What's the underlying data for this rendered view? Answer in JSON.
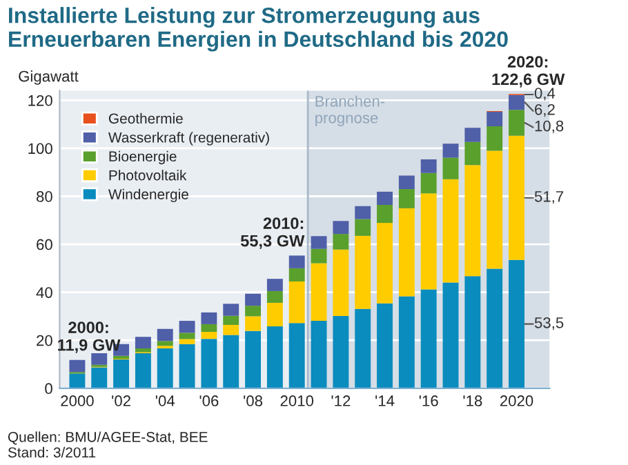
{
  "chart_data": {
    "type": "bar",
    "stacked": true,
    "title": "Installierte Leistung zur Stromerzeugung aus\nErneuerbaren Energien in Deutschland bis 2020",
    "ylabel": "Gigawatt",
    "x": [
      2000,
      2001,
      2002,
      2003,
      2004,
      2005,
      2006,
      2007,
      2008,
      2009,
      2010,
      2011,
      2012,
      2013,
      2014,
      2015,
      2016,
      2017,
      2018,
      2019,
      2020
    ],
    "xlim": [
      1999.2,
      2021.5
    ],
    "xticks": [
      {
        "value": 2000,
        "label": "2000"
      },
      {
        "value": 2002,
        "label": "'02"
      },
      {
        "value": 2004,
        "label": "'04"
      },
      {
        "value": 2006,
        "label": "'06"
      },
      {
        "value": 2008,
        "label": "'08"
      },
      {
        "value": 2010,
        "label": "2010"
      },
      {
        "value": 2012,
        "label": "'12"
      },
      {
        "value": 2014,
        "label": "'14"
      },
      {
        "value": 2016,
        "label": "'16"
      },
      {
        "value": 2018,
        "label": "'18"
      },
      {
        "value": 2020,
        "label": "2020"
      }
    ],
    "ylim": [
      0,
      124
    ],
    "yticks": [
      0,
      20,
      40,
      60,
      80,
      100,
      120
    ],
    "grid": "y",
    "legend": "top left",
    "series": [
      {
        "name": "Windenergie",
        "color": "#0a8cbe",
        "values": [
          6.1,
          8.7,
          12.0,
          14.6,
          16.6,
          18.4,
          20.6,
          22.2,
          23.9,
          25.8,
          27.2,
          28.1,
          30.1,
          33.1,
          35.4,
          38.3,
          41.2,
          44.1,
          46.7,
          49.8,
          53.5
        ],
        "value_labels": [
          null,
          null,
          null,
          null,
          null,
          null,
          null,
          null,
          null,
          null,
          null,
          null,
          null,
          null,
          null,
          null,
          null,
          null,
          null,
          null,
          "53,5"
        ]
      },
      {
        "name": "Photovoltaik",
        "color": "#ffcc00",
        "values": [
          null,
          0.2,
          0.3,
          0.4,
          1.1,
          2.1,
          2.9,
          4.2,
          6.1,
          9.8,
          17.3,
          24.0,
          27.7,
          30.4,
          33.5,
          36.7,
          40.0,
          43.0,
          46.3,
          49.2,
          51.7
        ],
        "value_labels": [
          null,
          null,
          null,
          null,
          null,
          null,
          null,
          null,
          null,
          null,
          null,
          null,
          null,
          null,
          null,
          null,
          null,
          null,
          null,
          null,
          "51,7"
        ]
      },
      {
        "name": "Bioenergie",
        "color": "#5aa02c",
        "values": [
          0.7,
          0.9,
          1.2,
          1.6,
          2.0,
          2.6,
          3.2,
          3.8,
          4.4,
          4.9,
          5.5,
          6.0,
          6.5,
          7.0,
          7.5,
          8.0,
          8.5,
          9.0,
          9.6,
          10.2,
          10.8
        ],
        "value_labels": [
          null,
          null,
          null,
          null,
          null,
          null,
          null,
          null,
          null,
          null,
          null,
          null,
          null,
          null,
          null,
          null,
          null,
          null,
          null,
          null,
          "10,8"
        ]
      },
      {
        "name": "Wasserkraft (regenerativ)",
        "color": "#4f5fa8",
        "values": [
          5.0,
          4.8,
          4.9,
          4.8,
          5.0,
          5.0,
          4.9,
          5.0,
          5.0,
          5.1,
          5.3,
          5.3,
          5.4,
          5.4,
          5.5,
          5.6,
          5.7,
          5.8,
          5.9,
          6.0,
          6.2
        ],
        "value_labels": [
          null,
          null,
          null,
          null,
          null,
          null,
          null,
          null,
          null,
          null,
          null,
          null,
          null,
          null,
          null,
          null,
          null,
          null,
          null,
          null,
          "6,2"
        ]
      },
      {
        "name": "Geothermie",
        "color": "#e8501e",
        "values": [
          null,
          null,
          null,
          null,
          null,
          null,
          null,
          null,
          null,
          null,
          null,
          null,
          null,
          null,
          null,
          null,
          null,
          null,
          null,
          0.3,
          0.4
        ],
        "value_labels": [
          null,
          null,
          null,
          null,
          null,
          null,
          null,
          null,
          null,
          null,
          null,
          null,
          null,
          null,
          null,
          null,
          null,
          null,
          null,
          null,
          "0,4"
        ]
      }
    ],
    "bands": [
      {
        "axis": "x",
        "from": 2010.5,
        "to": 2021.5,
        "label": "Branchen-\nprognose",
        "color": "#d5dde6"
      }
    ],
    "ref_lines": [
      {
        "axis": "x",
        "value": 2010.5,
        "color": "#a8b8c8"
      }
    ],
    "annotations": [
      {
        "text": "2000:\n11,9 GW",
        "x": 2000,
        "y": 11.9
      },
      {
        "text": "2010:\n55,3 GW",
        "x": 2010,
        "y": 55.3
      },
      {
        "text": "2020:\n122,6 GW",
        "x": 2020,
        "y": 122.6
      },
      "Quellen: BMU/AGEE-Stat, BEE\nStand: 3/2011"
    ]
  }
}
